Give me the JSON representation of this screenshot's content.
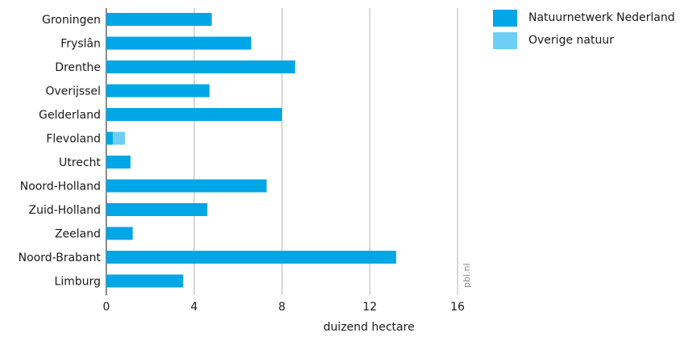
{
  "chart_data": {
    "type": "bar",
    "orientation": "horizontal",
    "stacked": true,
    "categories": [
      "Groningen",
      "Fryslân",
      "Drenthe",
      "Overijssel",
      "Gelderland",
      "Flevoland",
      "Utrecht",
      "Noord-Holland",
      "Zuid-Holland",
      "Zeeland",
      "Noord-Brabant",
      "Limburg"
    ],
    "series": [
      {
        "name": "Natuurnetwerk Nederland",
        "color": "#00a6e6",
        "values": [
          4.8,
          6.6,
          8.6,
          4.7,
          8.0,
          0.3,
          1.1,
          7.3,
          4.6,
          1.2,
          13.2,
          3.5
        ]
      },
      {
        "name": "Overige natuur",
        "color": "#6dcff6",
        "values": [
          0,
          0,
          0,
          0,
          0,
          0.55,
          0,
          0,
          0,
          0,
          0,
          0
        ]
      }
    ],
    "xticks": [
      "0",
      "4",
      "8",
      "12",
      "16"
    ],
    "xlim": [
      0,
      16
    ],
    "xlabel": "duizend hectare",
    "grid": true,
    "legend_position": "top-right",
    "credit": "pbl.nl"
  }
}
